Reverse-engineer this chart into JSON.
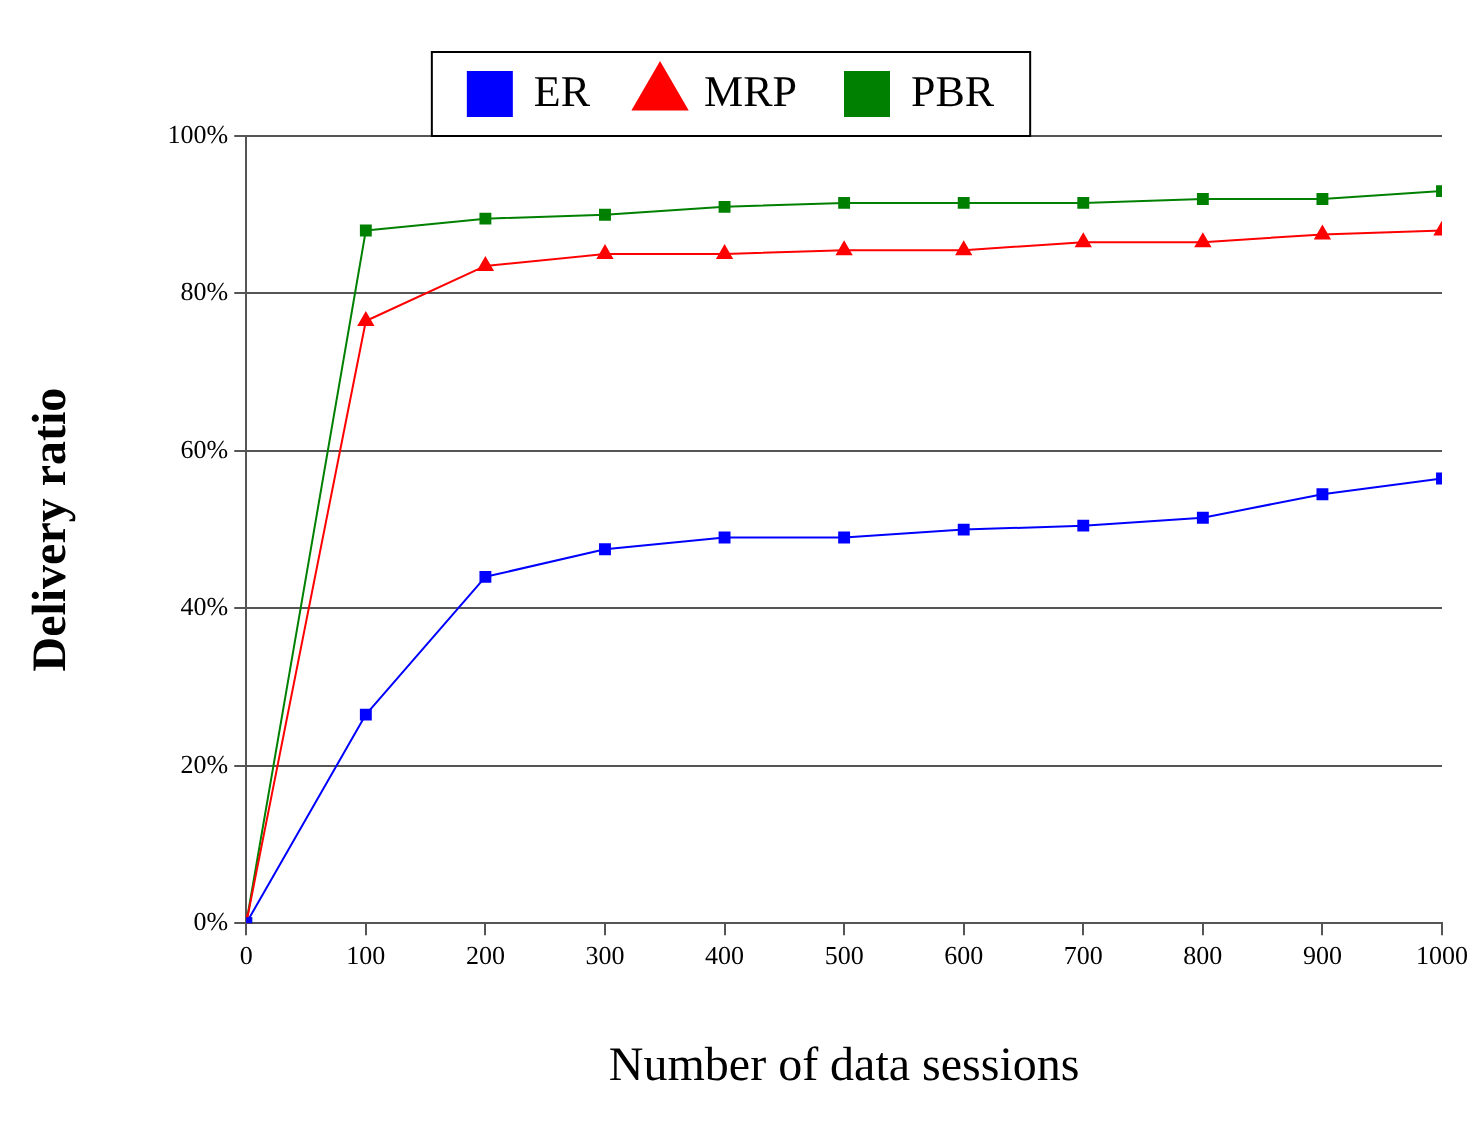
{
  "chart_data": {
    "type": "line",
    "xlabel": "Number of data sessions",
    "ylabel": "Delivery ratio",
    "x": [
      0,
      100,
      200,
      300,
      400,
      500,
      600,
      700,
      800,
      900,
      1000
    ],
    "xlim": [
      0,
      1000
    ],
    "xticks": [
      0,
      100,
      200,
      300,
      400,
      500,
      600,
      700,
      800,
      900,
      1000
    ],
    "ylim": [
      0,
      100
    ],
    "yticks": [
      {
        "value": 0,
        "label": "0%"
      },
      {
        "value": 20,
        "label": "20%"
      },
      {
        "value": 40,
        "label": "40%"
      },
      {
        "value": 60,
        "label": "60%"
      },
      {
        "value": 80,
        "label": "80%"
      },
      {
        "value": 100,
        "label": "100%"
      }
    ],
    "grid": "y",
    "legend": "top",
    "series": [
      {
        "name": "ER",
        "color": "#0000ff",
        "marker": "square",
        "values": [
          0,
          26.5,
          44,
          47.5,
          49,
          49,
          50,
          50.5,
          51.5,
          54.5,
          56.5
        ]
      },
      {
        "name": "MRP",
        "color": "#ff0000",
        "marker": "triangle",
        "values": [
          0,
          76.5,
          83.5,
          85,
          85,
          85.5,
          85.5,
          86.5,
          86.5,
          87.5,
          88
        ]
      },
      {
        "name": "PBR",
        "color": "#008000",
        "marker": "square",
        "values": [
          0,
          88,
          89.5,
          90,
          91,
          91.5,
          91.5,
          91.5,
          92,
          92,
          93
        ]
      }
    ]
  }
}
